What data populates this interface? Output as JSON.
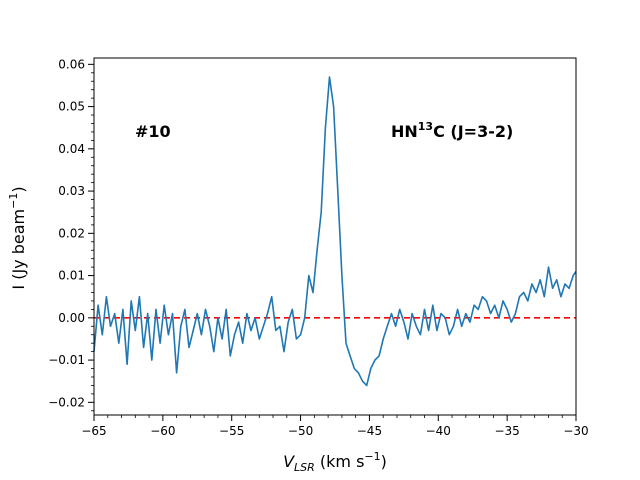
{
  "chart_data": {
    "type": "line",
    "title": "",
    "xlabel_main": "V",
    "xlabel_sub": "LSR",
    "xlabel_unit": " (km s",
    "xlabel_exp": "−1",
    "xlabel_close": ")",
    "ylabel_main": "I (Jy beam",
    "ylabel_exp": "−1",
    "ylabel_close": ")",
    "xlim": [
      -65,
      -30
    ],
    "ylim": [
      -0.023,
      0.0615
    ],
    "xticks": [
      -65,
      -60,
      -55,
      -50,
      -45,
      -40,
      -35,
      -30
    ],
    "xtick_labels": [
      "−65",
      "−60",
      "−55",
      "−50",
      "−45",
      "−40",
      "−35",
      "−30"
    ],
    "yticks": [
      -0.02,
      -0.01,
      0.0,
      0.01,
      0.02,
      0.03,
      0.04,
      0.05,
      0.06
    ],
    "ytick_labels": [
      "−0.02",
      "−0.01",
      "0.00",
      "0.01",
      "0.02",
      "0.03",
      "0.04",
      "0.05",
      "0.06"
    ],
    "annotation_left": "#10",
    "annotation_right_pre": "HN",
    "annotation_right_sup": "13",
    "annotation_right_post": "C (J=3-2)",
    "baseline": {
      "y": 0.0,
      "color": "#ff0000",
      "style": "dashed"
    },
    "series": [
      {
        "name": "spectrum",
        "color": "#1f77b4",
        "x": [
          -65.0,
          -64.7,
          -64.4,
          -64.1,
          -63.8,
          -63.5,
          -63.2,
          -62.9,
          -62.6,
          -62.3,
          -62.0,
          -61.7,
          -61.4,
          -61.1,
          -60.8,
          -60.5,
          -60.2,
          -59.9,
          -59.6,
          -59.3,
          -59.0,
          -58.7,
          -58.4,
          -58.1,
          -57.8,
          -57.5,
          -57.2,
          -56.9,
          -56.6,
          -56.3,
          -56.0,
          -55.7,
          -55.4,
          -55.1,
          -54.8,
          -54.5,
          -54.2,
          -53.9,
          -53.6,
          -53.3,
          -53.0,
          -52.7,
          -52.4,
          -52.1,
          -51.8,
          -51.5,
          -51.2,
          -50.9,
          -50.6,
          -50.3,
          -50.0,
          -49.7,
          -49.4,
          -49.1,
          -48.8,
          -48.5,
          -48.2,
          -47.9,
          -47.6,
          -47.3,
          -47.0,
          -46.7,
          -46.4,
          -46.1,
          -45.8,
          -45.5,
          -45.2,
          -44.9,
          -44.6,
          -44.3,
          -44.0,
          -43.7,
          -43.4,
          -43.1,
          -42.8,
          -42.5,
          -42.2,
          -41.9,
          -41.6,
          -41.3,
          -41.0,
          -40.7,
          -40.4,
          -40.1,
          -39.8,
          -39.5,
          -39.2,
          -38.9,
          -38.6,
          -38.3,
          -38.0,
          -37.7,
          -37.4,
          -37.1,
          -36.8,
          -36.5,
          -36.2,
          -35.9,
          -35.6,
          -35.3,
          -35.0,
          -34.7,
          -34.4,
          -34.1,
          -33.8,
          -33.5,
          -33.2,
          -32.9,
          -32.6,
          -32.3,
          -32.0,
          -31.7,
          -31.4,
          -31.1,
          -30.8,
          -30.5,
          -30.2,
          -30.0
        ],
        "y": [
          -0.008,
          0.003,
          -0.004,
          0.005,
          -0.002,
          0.001,
          -0.006,
          0.002,
          -0.011,
          0.004,
          -0.003,
          0.005,
          -0.007,
          0.001,
          -0.01,
          0.002,
          -0.006,
          0.003,
          -0.004,
          0.001,
          -0.013,
          -0.002,
          0.002,
          -0.007,
          -0.003,
          0.001,
          -0.004,
          0.002,
          -0.002,
          -0.008,
          0.0,
          -0.005,
          0.002,
          -0.009,
          -0.004,
          -0.001,
          -0.006,
          0.001,
          -0.003,
          0.0,
          -0.005,
          -0.002,
          0.001,
          0.005,
          -0.003,
          -0.002,
          -0.008,
          -0.001,
          0.002,
          -0.005,
          -0.004,
          0.0,
          0.01,
          0.006,
          0.016,
          0.025,
          0.045,
          0.057,
          0.05,
          0.03,
          0.01,
          -0.006,
          -0.009,
          -0.012,
          -0.013,
          -0.015,
          -0.016,
          -0.012,
          -0.01,
          -0.009,
          -0.005,
          -0.002,
          0.001,
          -0.002,
          0.002,
          -0.001,
          -0.005,
          0.001,
          -0.002,
          -0.004,
          0.002,
          -0.003,
          0.003,
          -0.003,
          0.001,
          0.0,
          -0.004,
          -0.002,
          0.002,
          -0.002,
          0.001,
          -0.001,
          0.003,
          0.002,
          0.005,
          0.004,
          0.001,
          0.003,
          0.0,
          0.004,
          0.002,
          -0.001,
          0.001,
          0.005,
          0.006,
          0.004,
          0.008,
          0.006,
          0.009,
          0.005,
          0.012,
          0.007,
          0.009,
          0.005,
          0.008,
          0.007,
          0.01,
          0.011
        ]
      }
    ]
  }
}
